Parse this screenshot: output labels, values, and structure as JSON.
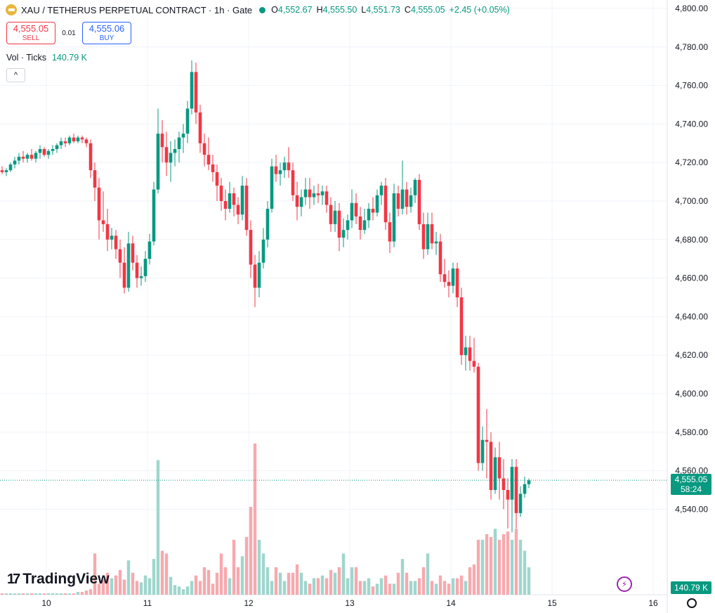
{
  "header": {
    "symbol_line": "XAU / TETHERUS PERPETUAL CONTRACT · 1h · Gate",
    "o_label": "O",
    "o_value": "4,552.67",
    "h_label": "H",
    "h_value": "4,555.50",
    "l_label": "L",
    "l_value": "4,551.73",
    "c_label": "C",
    "c_value": "4,555.05",
    "change": "+2.45 (+0.05%)",
    "coin_icon": "gold-bar-icon"
  },
  "trade": {
    "sell_price": "4,555.05",
    "sell_label": "SELL",
    "spread": "0.01",
    "buy_price": "4,555.06",
    "buy_label": "BUY"
  },
  "volume_legend": {
    "label": "Vol · Ticks",
    "value": "140.79 K"
  },
  "price_tag": {
    "price": "4,555.05",
    "countdown": "58:24"
  },
  "volume_tag": "140.79 K",
  "brand": "TradingView",
  "colors": {
    "up": "#089981",
    "down": "#f23645",
    "up_vol": "#9fd6cd",
    "down_vol": "#f7a9ae",
    "grid": "#f0f3fa"
  },
  "chart_data": {
    "type": "candlestick",
    "interval": "1h",
    "y_ticks": [
      4540,
      4560,
      4580,
      4600,
      4620,
      4640,
      4660,
      4680,
      4700,
      4720,
      4740,
      4760,
      4780,
      4800
    ],
    "y_tick_labels": [
      "4,540.00",
      "4,560.00",
      "4,580.00",
      "4,600.00",
      "4,620.00",
      "4,640.00",
      "4,660.00",
      "4,680.00",
      "4,700.00",
      "4,720.00",
      "4,740.00",
      "4,760.00",
      "4,780.00",
      "4,800.00"
    ],
    "ylim": [
      4505,
      4804
    ],
    "x_tick_labels": [
      "10",
      "11",
      "12",
      "13",
      "14",
      "15",
      "16"
    ],
    "x_tick_positions": [
      5,
      29,
      53,
      77,
      101,
      125,
      149
    ],
    "last_price": 4555.05,
    "candles": [
      [
        4716,
        4718,
        4714,
        4715
      ],
      [
        4715,
        4717,
        4713,
        4716
      ],
      [
        4716,
        4720,
        4715,
        4719
      ],
      [
        4719,
        4723,
        4717,
        4721
      ],
      [
        4721,
        4725,
        4719,
        4723
      ],
      [
        4723,
        4726,
        4720,
        4722
      ],
      [
        4722,
        4725,
        4720,
        4724
      ],
      [
        4724,
        4727,
        4721,
        4722
      ],
      [
        4722,
        4726,
        4720,
        4725
      ],
      [
        4725,
        4729,
        4722,
        4727
      ],
      [
        4727,
        4728,
        4723,
        4724
      ],
      [
        4724,
        4727,
        4722,
        4726
      ],
      [
        4726,
        4729,
        4724,
        4727
      ],
      [
        4727,
        4730,
        4725,
        4729
      ],
      [
        4729,
        4733,
        4727,
        4731
      ],
      [
        4731,
        4733,
        4728,
        4730
      ],
      [
        4730,
        4734,
        4729,
        4733
      ],
      [
        4733,
        4735,
        4730,
        4731
      ],
      [
        4731,
        4734,
        4730,
        4733
      ],
      [
        4733,
        4734,
        4730,
        4732
      ],
      [
        4732,
        4733,
        4728,
        4730
      ],
      [
        4730,
        4732,
        4712,
        4716
      ],
      [
        4716,
        4720,
        4700,
        4707
      ],
      [
        4707,
        4712,
        4680,
        4690
      ],
      [
        4690,
        4705,
        4684,
        4688
      ],
      [
        4688,
        4696,
        4674,
        4680
      ],
      [
        4680,
        4686,
        4675,
        4682
      ],
      [
        4682,
        4685,
        4670,
        4675
      ],
      [
        4675,
        4680,
        4660,
        4668
      ],
      [
        4668,
        4676,
        4652,
        4655
      ],
      [
        4655,
        4684,
        4653,
        4678
      ],
      [
        4678,
        4682,
        4664,
        4668
      ],
      [
        4668,
        4672,
        4655,
        4660
      ],
      [
        4660,
        4666,
        4656,
        4661
      ],
      [
        4661,
        4674,
        4658,
        4670
      ],
      [
        4670,
        4683,
        4667,
        4679
      ],
      [
        4679,
        4710,
        4677,
        4706
      ],
      [
        4706,
        4748,
        4704,
        4735
      ],
      [
        4735,
        4742,
        4720,
        4728
      ],
      [
        4728,
        4736,
        4713,
        4720
      ],
      [
        4720,
        4731,
        4710,
        4725
      ],
      [
        4725,
        4732,
        4718,
        4727
      ],
      [
        4727,
        4736,
        4720,
        4733
      ],
      [
        4733,
        4740,
        4725,
        4735
      ],
      [
        4735,
        4752,
        4730,
        4748
      ],
      [
        4748,
        4773,
        4745,
        4767
      ],
      [
        4767,
        4772,
        4740,
        4746
      ],
      [
        4746,
        4750,
        4725,
        4730
      ],
      [
        4730,
        4735,
        4718,
        4724
      ],
      [
        4724,
        4733,
        4716,
        4719
      ],
      [
        4719,
        4724,
        4710,
        4715
      ],
      [
        4715,
        4719,
        4700,
        4708
      ],
      [
        4708,
        4712,
        4695,
        4700
      ],
      [
        4700,
        4706,
        4690,
        4696
      ],
      [
        4696,
        4710,
        4694,
        4704
      ],
      [
        4704,
        4707,
        4692,
        4698
      ],
      [
        4698,
        4702,
        4688,
        4693
      ],
      [
        4693,
        4713,
        4690,
        4708
      ],
      [
        4708,
        4712,
        4682,
        4685
      ],
      [
        4685,
        4690,
        4660,
        4667
      ],
      [
        4667,
        4672,
        4645,
        4655
      ],
      [
        4655,
        4674,
        4650,
        4668
      ],
      [
        4668,
        4686,
        4665,
        4680
      ],
      [
        4680,
        4700,
        4676,
        4696
      ],
      [
        4696,
        4722,
        4694,
        4718
      ],
      [
        4718,
        4724,
        4710,
        4714
      ],
      [
        4714,
        4720,
        4708,
        4716
      ],
      [
        4716,
        4723,
        4712,
        4720
      ],
      [
        4720,
        4728,
        4712,
        4716
      ],
      [
        4716,
        4720,
        4700,
        4703
      ],
      [
        4703,
        4710,
        4690,
        4697
      ],
      [
        4697,
        4706,
        4692,
        4702
      ],
      [
        4702,
        4712,
        4698,
        4706
      ],
      [
        4706,
        4712,
        4696,
        4702
      ],
      [
        4702,
        4708,
        4698,
        4704
      ],
      [
        4704,
        4709,
        4699,
        4703
      ],
      [
        4703,
        4708,
        4698,
        4705
      ],
      [
        4705,
        4708,
        4694,
        4698
      ],
      [
        4698,
        4702,
        4684,
        4688
      ],
      [
        4688,
        4700,
        4684,
        4695
      ],
      [
        4695,
        4699,
        4674,
        4681
      ],
      [
        4681,
        4691,
        4676,
        4685
      ],
      [
        4685,
        4693,
        4680,
        4690
      ],
      [
        4690,
        4706,
        4686,
        4699
      ],
      [
        4699,
        4704,
        4688,
        4692
      ],
      [
        4692,
        4697,
        4680,
        4685
      ],
      [
        4685,
        4696,
        4683,
        4690
      ],
      [
        4690,
        4699,
        4686,
        4696
      ],
      [
        4696,
        4702,
        4690,
        4694
      ],
      [
        4694,
        4706,
        4692,
        4703
      ],
      [
        4703,
        4710,
        4698,
        4708
      ],
      [
        4708,
        4712,
        4685,
        4689
      ],
      [
        4689,
        4694,
        4673,
        4679
      ],
      [
        4679,
        4709,
        4676,
        4704
      ],
      [
        4704,
        4708,
        4692,
        4696
      ],
      [
        4696,
        4721,
        4693,
        4706
      ],
      [
        4706,
        4710,
        4693,
        4697
      ],
      [
        4697,
        4707,
        4694,
        4703
      ],
      [
        4703,
        4712,
        4699,
        4711
      ],
      [
        4711,
        4714,
        4685,
        4688
      ],
      [
        4688,
        4694,
        4670,
        4675
      ],
      [
        4675,
        4694,
        4672,
        4688
      ],
      [
        4688,
        4694,
        4675,
        4678
      ],
      [
        4678,
        4684,
        4672,
        4679
      ],
      [
        4679,
        4683,
        4658,
        4662
      ],
      [
        4662,
        4670,
        4655,
        4658
      ],
      [
        4658,
        4664,
        4650,
        4656
      ],
      [
        4656,
        4668,
        4652,
        4665
      ],
      [
        4665,
        4668,
        4645,
        4650
      ],
      [
        4650,
        4655,
        4615,
        4620
      ],
      [
        4620,
        4630,
        4612,
        4624
      ],
      [
        4624,
        4630,
        4612,
        4617
      ],
      [
        4617,
        4629,
        4611,
        4614
      ],
      [
        4614,
        4616,
        4560,
        4564
      ],
      [
        4564,
        4583,
        4560,
        4576
      ],
      [
        4576,
        4592,
        4556,
        4575
      ],
      [
        4575,
        4580,
        4545,
        4550
      ],
      [
        4550,
        4572,
        4548,
        4567
      ],
      [
        4567,
        4575,
        4545,
        4556
      ],
      [
        4556,
        4566,
        4540,
        4550
      ],
      [
        4550,
        4556,
        4530,
        4545
      ],
      [
        4545,
        4566,
        4528,
        4562
      ],
      [
        4562,
        4566,
        4530,
        4538
      ],
      [
        4538,
        4552,
        4536,
        4548
      ],
      [
        4548,
        4557,
        4546,
        4553
      ],
      [
        4553,
        4556,
        4551,
        4555
      ]
    ],
    "volume": [
      1,
      1,
      1,
      1,
      1,
      1,
      1,
      1,
      1,
      1,
      1,
      1,
      1,
      1,
      1,
      1,
      1,
      1,
      2,
      2,
      3,
      4,
      30,
      8,
      11,
      16,
      12,
      14,
      18,
      11,
      25,
      16,
      10,
      9,
      14,
      12,
      26,
      98,
      32,
      30,
      13,
      7,
      6,
      4,
      6,
      10,
      14,
      10,
      20,
      18,
      8,
      16,
      30,
      20,
      12,
      40,
      20,
      28,
      42,
      64,
      110,
      40,
      30,
      20,
      10,
      20,
      16,
      10,
      16,
      16,
      22,
      16,
      10,
      8,
      12,
      12,
      14,
      12,
      18,
      16,
      20,
      30,
      12,
      20,
      20,
      10,
      10,
      12,
      6,
      8,
      12,
      14,
      8,
      8,
      16,
      26,
      16,
      10,
      10,
      12,
      20,
      30,
      10,
      8,
      14,
      10,
      8,
      12,
      12,
      14,
      10,
      20,
      22,
      40,
      40,
      44,
      42,
      48,
      40,
      44,
      46,
      40,
      48,
      40,
      32,
      20
    ]
  }
}
